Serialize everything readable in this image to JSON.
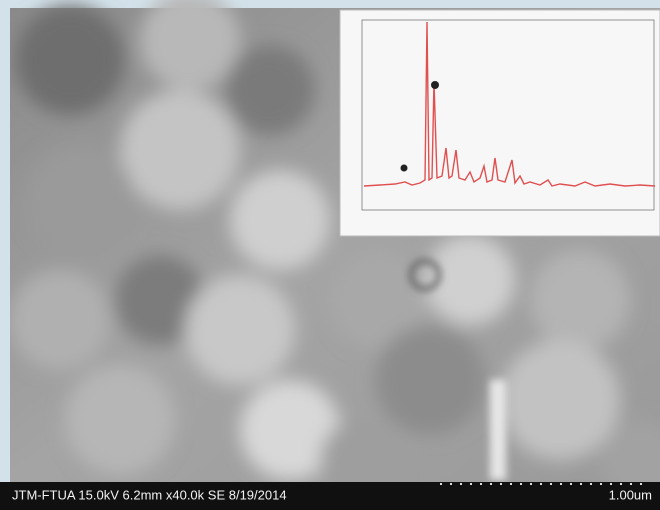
{
  "caption": {
    "info": "JTM-FTUA 15.0kV 6.2mm x40.0k SE 8/19/2014",
    "scale": "1.00um"
  }
}
